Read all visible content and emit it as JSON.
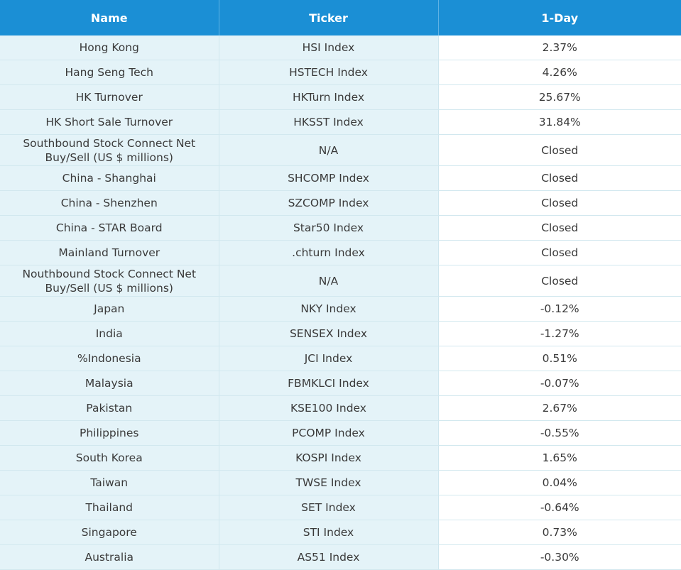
{
  "table": {
    "header": [
      "Name",
      "Ticker",
      "1-Day"
    ],
    "rows": [
      [
        "Hong Kong",
        "HSI Index",
        "2.37%"
      ],
      [
        "Hang Seng Tech",
        "HSTECH Index",
        "4.26%"
      ],
      [
        "HK Turnover",
        "HKTurn Index",
        "25.67%"
      ],
      [
        "HK Short Sale Turnover",
        "HKSST Index",
        "31.84%"
      ],
      [
        "Southbound Stock Connect Net Buy/Sell (US $ millions)",
        "N/A",
        "Closed"
      ],
      [
        "China - Shanghai",
        "SHCOMP Index",
        "Closed"
      ],
      [
        "China - Shenzhen",
        "SZCOMP Index",
        "Closed"
      ],
      [
        "China - STAR Board",
        "Star50 Index",
        "Closed"
      ],
      [
        "Mainland Turnover",
        ".chturn Index",
        "Closed"
      ],
      [
        "Nouthbound Stock Connect Net Buy/Sell (US $ millions)",
        "N/A",
        "Closed"
      ],
      [
        "Japan",
        "NKY Index",
        "-0.12%"
      ],
      [
        "India",
        "SENSEX Index",
        "-1.27%"
      ],
      [
        "%Indonesia",
        "JCI Index",
        "0.51%"
      ],
      [
        "Malaysia",
        "FBMKLCI Index",
        "-0.07%"
      ],
      [
        "Pakistan",
        "KSE100 Index",
        "2.67%"
      ],
      [
        "Philippines",
        "PCOMP Index",
        "-0.55%"
      ],
      [
        "South Korea",
        "KOSPI Index",
        "1.65%"
      ],
      [
        "Taiwan",
        "TWSE Index",
        "0.04%"
      ],
      [
        "Thailand",
        "SET Index",
        "-0.64%"
      ],
      [
        "Singapore",
        "STI Index",
        "0.73%"
      ],
      [
        "Australia",
        "AS51 Index",
        "-0.30%"
      ]
    ]
  }
}
